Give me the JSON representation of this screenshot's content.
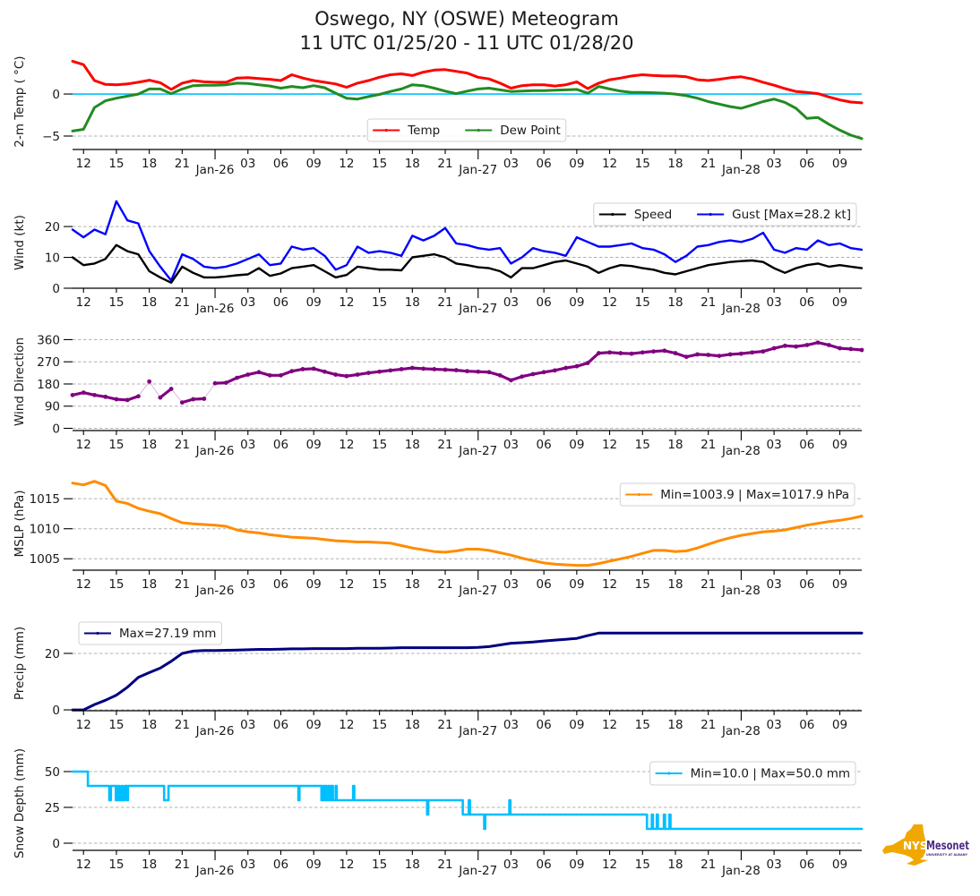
{
  "title": {
    "line1": "Oswego, NY (OSWE) Meteogram",
    "line2": "11 UTC 01/25/20 - 11 UTC 01/28/20"
  },
  "x_axis": {
    "start": "11 UTC 01/25/20",
    "end": "11 UTC 01/28/20",
    "unit": "hours since 11 UTC 01/25/20",
    "range": [
      0,
      72
    ],
    "x": [
      0,
      1,
      2,
      3,
      4,
      5,
      6,
      7,
      8,
      9,
      10,
      11,
      12,
      13,
      14,
      15,
      16,
      17,
      18,
      19,
      20,
      21,
      22,
      23,
      24,
      25,
      26,
      27,
      28,
      29,
      30,
      31,
      32,
      33,
      34,
      35,
      36,
      37,
      38,
      39,
      40,
      41,
      42,
      43,
      44,
      45,
      46,
      47,
      48,
      49,
      50,
      51,
      52,
      53,
      54,
      55,
      56,
      57,
      58,
      59,
      60,
      61,
      62,
      63,
      64,
      65,
      66,
      67,
      68,
      69,
      70,
      71,
      72
    ],
    "ticks": [
      {
        "h": 1,
        "label": "12"
      },
      {
        "h": 4,
        "label": "15"
      },
      {
        "h": 7,
        "label": "18"
      },
      {
        "h": 10,
        "label": "21"
      },
      {
        "h": 13,
        "label": "Jan-26",
        "major": true
      },
      {
        "h": 16,
        "label": "03"
      },
      {
        "h": 19,
        "label": "06"
      },
      {
        "h": 22,
        "label": "09"
      },
      {
        "h": 25,
        "label": "12"
      },
      {
        "h": 28,
        "label": "15"
      },
      {
        "h": 31,
        "label": "18"
      },
      {
        "h": 34,
        "label": "21"
      },
      {
        "h": 37,
        "label": "Jan-27",
        "major": true
      },
      {
        "h": 40,
        "label": "03"
      },
      {
        "h": 43,
        "label": "06"
      },
      {
        "h": 46,
        "label": "09"
      },
      {
        "h": 49,
        "label": "12"
      },
      {
        "h": 52,
        "label": "15"
      },
      {
        "h": 55,
        "label": "18"
      },
      {
        "h": 58,
        "label": "21"
      },
      {
        "h": 61,
        "label": "Jan-28",
        "major": true
      },
      {
        "h": 64,
        "label": "03"
      },
      {
        "h": 67,
        "label": "06"
      },
      {
        "h": 70,
        "label": "09"
      }
    ]
  },
  "chart_data": [
    {
      "id": "temperature",
      "type": "line",
      "ylabel": "2-m Temp ( °C)",
      "ylim": [
        -6.6,
        4.8
      ],
      "grid": true,
      "yticks": [
        {
          "v": 0,
          "label": "0"
        },
        {
          "v": -5,
          "label": "−5"
        }
      ],
      "reference_line": {
        "value": 0,
        "color": "#00bfff"
      },
      "legend": {
        "position": "lower center",
        "entries": [
          {
            "label": "Temp",
            "color": "#ff0000"
          },
          {
            "label": "Dew Point",
            "color": "#228b22"
          }
        ]
      },
      "series": [
        {
          "name": "Temp",
          "color": "#ff0000",
          "values": [
            3.9,
            3.5,
            1.6,
            1.15,
            1.1,
            1.2,
            1.4,
            1.65,
            1.35,
            0.55,
            1.3,
            1.6,
            1.45,
            1.4,
            1.4,
            1.9,
            1.95,
            1.85,
            1.75,
            1.6,
            2.3,
            1.9,
            1.6,
            1.4,
            1.2,
            0.8,
            1.3,
            1.6,
            2.0,
            2.3,
            2.4,
            2.2,
            2.6,
            2.85,
            2.9,
            2.7,
            2.5,
            2.0,
            1.8,
            1.3,
            0.7,
            1.0,
            1.1,
            1.1,
            0.95,
            1.1,
            1.45,
            0.65,
            1.3,
            1.7,
            1.9,
            2.15,
            2.3,
            2.2,
            2.15,
            2.15,
            2.05,
            1.7,
            1.6,
            1.75,
            1.95,
            2.05,
            1.8,
            1.4,
            1.05,
            0.65,
            0.3,
            0.2,
            0.05,
            -0.35,
            -0.7,
            -0.95,
            -1.05
          ]
        },
        {
          "name": "Dew Point",
          "color": "#228b22",
          "values": [
            -4.4,
            -4.2,
            -1.6,
            -0.8,
            -0.5,
            -0.25,
            0.0,
            0.6,
            0.6,
            0.05,
            0.6,
            1.0,
            1.05,
            1.05,
            1.1,
            1.3,
            1.25,
            1.1,
            0.95,
            0.7,
            0.9,
            0.75,
            1.0,
            0.75,
            0.1,
            -0.5,
            -0.6,
            -0.3,
            -0.05,
            0.3,
            0.6,
            1.1,
            1.0,
            0.7,
            0.35,
            0.05,
            0.35,
            0.6,
            0.7,
            0.5,
            0.3,
            0.35,
            0.4,
            0.4,
            0.45,
            0.5,
            0.55,
            0.1,
            0.9,
            0.6,
            0.35,
            0.2,
            0.2,
            0.15,
            0.1,
            0.0,
            -0.2,
            -0.5,
            -0.9,
            -1.2,
            -1.5,
            -1.7,
            -1.3,
            -0.9,
            -0.6,
            -1.0,
            -1.7,
            -2.9,
            -2.8,
            -3.6,
            -4.3,
            -4.9,
            -5.3
          ]
        }
      ]
    },
    {
      "id": "wind",
      "type": "line",
      "ylabel": "Wind (kt)",
      "ylim": [
        0,
        29.6
      ],
      "grid": true,
      "yticks": [
        {
          "v": 0,
          "label": "0"
        },
        {
          "v": 10,
          "label": "10"
        },
        {
          "v": 20,
          "label": "20"
        }
      ],
      "legend": {
        "position": "upper right",
        "entries": [
          {
            "label": "Speed",
            "color": "#000000"
          },
          {
            "label": "Gust [Max=28.2 kt]",
            "color": "#0000ff"
          }
        ]
      },
      "series": [
        {
          "name": "Gust",
          "color": "#0000ff",
          "values": [
            19,
            16.5,
            19,
            17.5,
            28.2,
            22,
            21,
            12,
            7,
            2.5,
            11,
            9.5,
            7,
            6.5,
            7,
            8,
            9.5,
            11,
            7.5,
            8,
            13.5,
            12.5,
            13,
            10.5,
            6,
            7.5,
            13.5,
            11.5,
            12,
            11.5,
            10.5,
            17,
            15.5,
            17,
            19.5,
            14.5,
            14,
            13,
            12.5,
            13,
            8,
            10,
            13,
            12,
            11.5,
            10.5,
            16.5,
            15,
            13.5,
            13.5,
            14,
            14.5,
            13,
            12.5,
            11,
            8.5,
            10.5,
            13.5,
            14,
            15,
            15.5,
            15,
            16,
            18,
            12.5,
            11.5,
            13,
            12.5,
            15.5,
            14,
            14.5,
            13,
            12.5
          ]
        },
        {
          "name": "Speed",
          "color": "#000000",
          "values": [
            10,
            7.5,
            8,
            9.5,
            14,
            12,
            11,
            5.5,
            3.5,
            1.8,
            7,
            5,
            3.5,
            3.5,
            3.8,
            4.2,
            4.5,
            6.5,
            4,
            4.8,
            6.5,
            7,
            7.5,
            5.5,
            3.5,
            4.3,
            7,
            6.5,
            6,
            6,
            5.8,
            10,
            10.5,
            11,
            10,
            8,
            7.5,
            6.8,
            6.5,
            5.5,
            3.5,
            6.5,
            6.5,
            7.5,
            8.5,
            9,
            8,
            7,
            5,
            6.5,
            7.5,
            7.2,
            6.5,
            6,
            5,
            4.5,
            5.5,
            6.5,
            7.5,
            8,
            8.5,
            8.8,
            9,
            8.5,
            6.5,
            5,
            6.5,
            7.5,
            8,
            7,
            7.5,
            7,
            6.5
          ]
        }
      ]
    },
    {
      "id": "wind-direction",
      "type": "scatter",
      "ylabel": "Wind Direction",
      "ylim": [
        -9,
        387
      ],
      "grid": true,
      "yticks": [
        {
          "v": 0,
          "label": "0"
        },
        {
          "v": 90,
          "label": "90"
        },
        {
          "v": 180,
          "label": "180"
        },
        {
          "v": 270,
          "label": "270"
        },
        {
          "v": 360,
          "label": "360"
        }
      ],
      "series": [
        {
          "name": "Wind Direction",
          "color": "#800080",
          "values": [
            135,
            145,
            135,
            128,
            118,
            115,
            130,
            190,
            125,
            160,
            105,
            118,
            120,
            183,
            185,
            205,
            218,
            228,
            215,
            215,
            232,
            240,
            242,
            230,
            218,
            212,
            218,
            225,
            230,
            235,
            240,
            245,
            242,
            240,
            238,
            236,
            232,
            230,
            228,
            215,
            195,
            210,
            220,
            228,
            235,
            245,
            252,
            265,
            305,
            308,
            305,
            303,
            308,
            312,
            315,
            305,
            290,
            300,
            298,
            294,
            300,
            303,
            308,
            312,
            325,
            335,
            332,
            338,
            348,
            338,
            325,
            322,
            318
          ]
        }
      ]
    },
    {
      "id": "mslp",
      "type": "line",
      "ylabel": "MSLP (hPa)",
      "ylim": [
        1003.1,
        1018.6
      ],
      "grid": true,
      "yticks": [
        {
          "v": 1005,
          "label": "1005"
        },
        {
          "v": 1010,
          "label": "1010"
        },
        {
          "v": 1015,
          "label": "1015"
        }
      ],
      "legend": {
        "position": "upper right",
        "entries": [
          {
            "label": "Min=1003.9 | Max=1017.9 hPa",
            "color": "#ff8c00"
          }
        ]
      },
      "series": [
        {
          "name": "MSLP",
          "color": "#ff8c00",
          "values": [
            1017.6,
            1017.3,
            1017.9,
            1017.2,
            1014.6,
            1014.2,
            1013.4,
            1012.9,
            1012.5,
            1011.7,
            1011.0,
            1010.8,
            1010.7,
            1010.6,
            1010.4,
            1009.8,
            1009.5,
            1009.3,
            1009.0,
            1008.8,
            1008.6,
            1008.5,
            1008.4,
            1008.2,
            1008.0,
            1007.9,
            1007.8,
            1007.8,
            1007.7,
            1007.6,
            1007.2,
            1006.8,
            1006.5,
            1006.2,
            1006.1,
            1006.3,
            1006.6,
            1006.6,
            1006.4,
            1006.0,
            1005.6,
            1005.1,
            1004.7,
            1004.3,
            1004.1,
            1004.0,
            1003.9,
            1003.9,
            1004.2,
            1004.6,
            1005.0,
            1005.4,
            1005.9,
            1006.4,
            1006.4,
            1006.2,
            1006.3,
            1006.8,
            1007.4,
            1008.0,
            1008.5,
            1008.9,
            1009.2,
            1009.5,
            1009.6,
            1009.8,
            1010.2,
            1010.6,
            1010.9,
            1011.2,
            1011.4,
            1011.7,
            1012.1
          ]
        }
      ]
    },
    {
      "id": "precip",
      "type": "line",
      "ylabel": "Precip (mm)",
      "ylim": [
        -0.3,
        33.3
      ],
      "grid": true,
      "yticks": [
        {
          "v": 0,
          "label": "0"
        },
        {
          "v": 20,
          "label": "20"
        }
      ],
      "legend": {
        "position": "upper left",
        "entries": [
          {
            "label": "Max=27.19 mm",
            "color": "#000080"
          }
        ]
      },
      "series": [
        {
          "name": "Precip",
          "color": "#000080",
          "values": [
            0,
            0,
            1.9,
            3.4,
            5.2,
            8.0,
            11.5,
            13.2,
            14.8,
            17.2,
            20.0,
            20.8,
            21.0,
            21.0,
            21.1,
            21.2,
            21.3,
            21.4,
            21.4,
            21.5,
            21.6,
            21.6,
            21.7,
            21.7,
            21.7,
            21.7,
            21.8,
            21.8,
            21.8,
            21.9,
            22.0,
            22.0,
            22.0,
            22.0,
            22.0,
            22.0,
            22.0,
            22.1,
            22.4,
            23.0,
            23.6,
            23.8,
            24.0,
            24.4,
            24.7,
            25.0,
            25.3,
            26.3,
            27.19,
            27.19,
            27.19,
            27.19,
            27.19,
            27.19,
            27.19,
            27.19,
            27.19,
            27.19,
            27.19,
            27.19,
            27.19,
            27.19,
            27.19,
            27.19,
            27.19,
            27.19,
            27.19,
            27.19,
            27.19,
            27.19,
            27.19,
            27.19,
            27.19
          ]
        }
      ]
    },
    {
      "id": "snow-depth",
      "type": "step",
      "ylabel": "Snow Depth (mm)",
      "ylim": [
        -5,
        60.6
      ],
      "grid": true,
      "yticks": [
        {
          "v": 0,
          "label": "0"
        },
        {
          "v": 25,
          "label": "25"
        },
        {
          "v": 50,
          "label": "50"
        }
      ],
      "legend": {
        "position": "upper right",
        "entries": [
          {
            "label": "Min=10.0 | Max=50.0 mm",
            "color": "#00bfff"
          }
        ]
      },
      "series": [
        {
          "name": "Snow Depth",
          "color": "#00bfff",
          "steps": [
            [
              0,
              50
            ],
            [
              1.4,
              40
            ],
            [
              3.35,
              30
            ],
            [
              3.5,
              40
            ],
            [
              3.95,
              30
            ],
            [
              4.1,
              40
            ],
            [
              4.25,
              30
            ],
            [
              4.45,
              40
            ],
            [
              4.55,
              30
            ],
            [
              4.75,
              40
            ],
            [
              4.95,
              30
            ],
            [
              5.05,
              40
            ],
            [
              8.35,
              30
            ],
            [
              8.75,
              40
            ],
            [
              20.6,
              30
            ],
            [
              20.7,
              40
            ],
            [
              22.7,
              30
            ],
            [
              22.8,
              40
            ],
            [
              22.9,
              30
            ],
            [
              23.0,
              40
            ],
            [
              23.15,
              30
            ],
            [
              23.3,
              40
            ],
            [
              23.45,
              30
            ],
            [
              23.6,
              40
            ],
            [
              23.75,
              30
            ],
            [
              24.0,
              40
            ],
            [
              24.1,
              30
            ],
            [
              25.6,
              40
            ],
            [
              25.7,
              30
            ],
            [
              32.35,
              20
            ],
            [
              32.45,
              30
            ],
            [
              35.6,
              20
            ],
            [
              36.15,
              30
            ],
            [
              36.25,
              20
            ],
            [
              37.55,
              10
            ],
            [
              37.65,
              20
            ],
            [
              39.85,
              30
            ],
            [
              39.95,
              20
            ],
            [
              52.4,
              10
            ],
            [
              52.85,
              20
            ],
            [
              52.95,
              10
            ],
            [
              53.3,
              20
            ],
            [
              53.4,
              10
            ],
            [
              53.95,
              20
            ],
            [
              54.05,
              10
            ],
            [
              54.45,
              20
            ],
            [
              54.55,
              10
            ],
            [
              72,
              10
            ]
          ]
        }
      ]
    }
  ],
  "logo": {
    "state_text": "NYS",
    "brand_text": "Mesonet",
    "sub_text": "UNIVERSITY AT ALBANY",
    "state_color": "#f0a800",
    "brand_color": "#4b2e83"
  }
}
